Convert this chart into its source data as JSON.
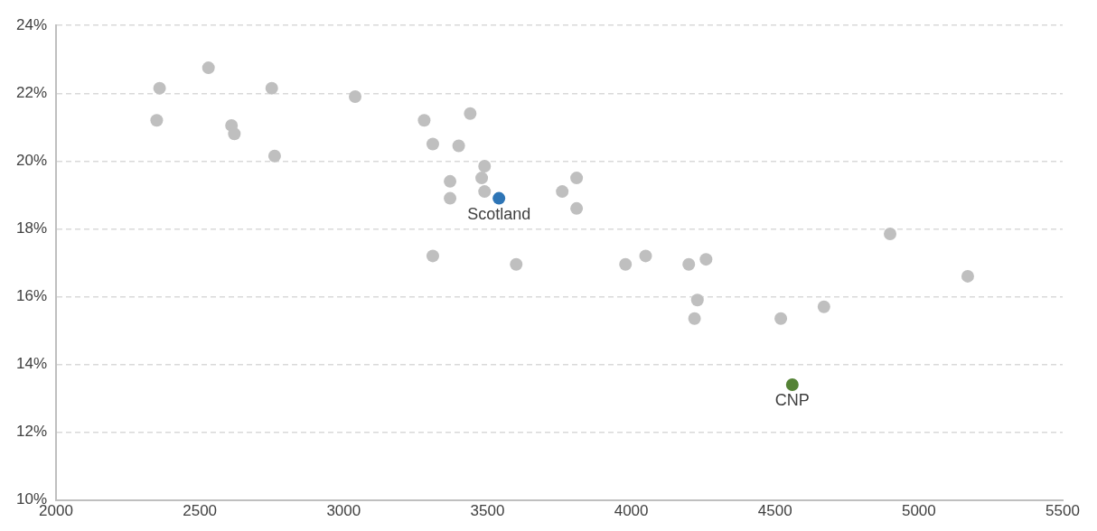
{
  "chart_data": {
    "type": "scatter",
    "grid": "y",
    "legend": false,
    "marker": "circle",
    "xlim": [
      2000,
      5500
    ],
    "xticks": [
      2000,
      2500,
      3000,
      3500,
      4000,
      4500,
      5000,
      5500
    ],
    "ylim": [
      10,
      24
    ],
    "yticks": [
      {
        "value": 10,
        "label": "10%"
      },
      {
        "value": 12,
        "label": "12%"
      },
      {
        "value": 14,
        "label": "14%"
      },
      {
        "value": 16,
        "label": "16%"
      },
      {
        "value": 18,
        "label": "18%"
      },
      {
        "value": 20,
        "label": "20%"
      },
      {
        "value": 22,
        "label": "22%"
      },
      {
        "value": 24,
        "label": "24%"
      }
    ],
    "series": [
      {
        "color": "#bfbfbf",
        "x": [
          2360,
          2530,
          2350,
          2750,
          3040,
          2610,
          2620,
          2760,
          3280,
          3440,
          3310,
          3400,
          3490,
          3370,
          3480,
          3490,
          3370,
          3760,
          3810,
          3810,
          3310,
          3600,
          3980,
          4050,
          4200,
          4260,
          4230,
          4220,
          4520,
          4670,
          4900,
          5170
        ],
        "values": [
          22.15,
          22.75,
          21.2,
          22.15,
          21.9,
          21.05,
          20.8,
          20.15,
          21.2,
          21.4,
          20.5,
          20.45,
          19.85,
          19.4,
          19.5,
          19.1,
          18.9,
          19.1,
          19.5,
          18.6,
          17.2,
          16.95,
          16.95,
          17.2,
          16.95,
          17.1,
          15.9,
          15.35,
          15.35,
          15.7,
          17.85,
          16.6
        ]
      },
      {
        "name": "Scotland",
        "color": "#2e75b6",
        "x": [
          3540
        ],
        "values": [
          18.9
        ]
      },
      {
        "name": "CNP",
        "color": "#548235",
        "x": [
          4560
        ],
        "values": [
          13.4
        ]
      }
    ]
  }
}
